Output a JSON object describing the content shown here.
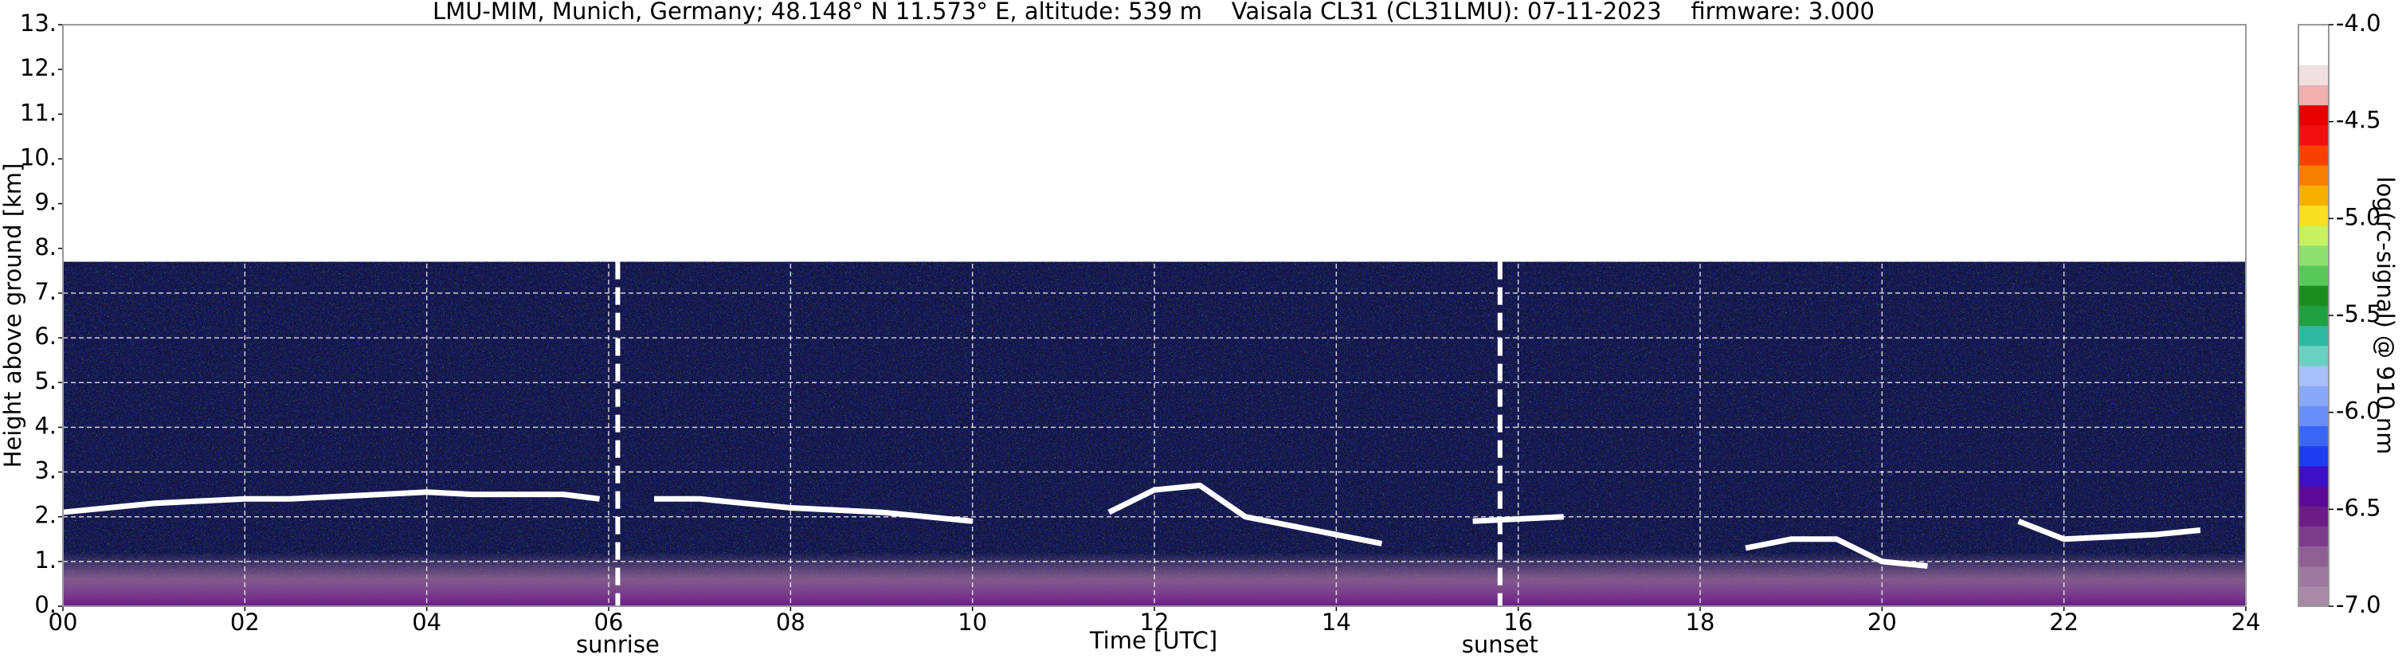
{
  "chart_data": {
    "type": "heatmap",
    "title": "LMU-MIM, Munich, Germany; 48.148° N 11.573° E, altitude: 539 m    Vaisala CL31 (CL31LMU): 07-11-2023    firmware: 3.000",
    "x_label": "Time [UTC]",
    "y_label": "Height above ground [km]",
    "colorbar_label": "log(rc-signal) @ 910 nm",
    "xlim": [
      0,
      24
    ],
    "xticks": [
      {
        "value": 0,
        "label": "00"
      },
      {
        "value": 2,
        "label": "02"
      },
      {
        "value": 4,
        "label": "04"
      },
      {
        "value": 6,
        "label": "06"
      },
      {
        "value": 8,
        "label": "08"
      },
      10,
      12,
      14,
      16,
      18,
      20,
      22,
      24
    ],
    "ylim": [
      0,
      13
    ],
    "yticks": [
      {
        "value": 0,
        "label": "0."
      },
      {
        "value": 1,
        "label": "1."
      },
      {
        "value": 2,
        "label": "2."
      },
      {
        "value": 3,
        "label": "3."
      },
      {
        "value": 4,
        "label": "4."
      },
      {
        "value": 5,
        "label": "5."
      },
      {
        "value": 6,
        "label": "6."
      },
      {
        "value": 7,
        "label": "7."
      },
      {
        "value": 8,
        "label": "8."
      },
      {
        "value": 9,
        "label": "9."
      },
      {
        "value": 10,
        "label": "10."
      },
      {
        "value": 11,
        "label": "11."
      },
      {
        "value": 12,
        "label": "12."
      },
      {
        "value": 13,
        "label": "13."
      }
    ],
    "grid": true,
    "signal_top": 7.7,
    "clim": [
      -7,
      -4
    ],
    "cticks": [
      {
        "value": -7,
        "label": "-7.0"
      },
      -6.5,
      {
        "value": -6,
        "label": "-6.0"
      },
      -5.5,
      {
        "value": -5,
        "label": "-5.0"
      },
      -4.5,
      {
        "value": -4,
        "label": "-4.0"
      }
    ],
    "colormap": [
      "#a88aa8",
      "#9c789c",
      "#8f5f93",
      "#7d3c8a",
      "#6b1c86",
      "#5a0a96",
      "#3d10c8",
      "#1f3cf0",
      "#3a66f5",
      "#6a8ef7",
      "#8aa8f8",
      "#a8c0f8",
      "#6ad0c0",
      "#30b8a0",
      "#20a040",
      "#1a8c20",
      "#58c858",
      "#90e070",
      "#c8f060",
      "#f8e020",
      "#f8b000",
      "#f88000",
      "#f84000",
      "#f01010",
      "#e80000",
      "#f0b0b0",
      "#f0e0e0",
      "#ffffff",
      "#ffffff"
    ],
    "events": [
      {
        "x": 6.1,
        "label": "sunrise"
      },
      {
        "x": 15.8,
        "label": "sunset"
      }
    ],
    "x": [
      0,
      0.5,
      1,
      1.5,
      2,
      2.5,
      3,
      3.5,
      4,
      4.5,
      5,
      5.5,
      5.9,
      6.2,
      6.5,
      7,
      7.5,
      8,
      8.5,
      9,
      9.5,
      10,
      10.5,
      11,
      11.5,
      12,
      12.5,
      13,
      13.5,
      14,
      14.5,
      15,
      15.5,
      16,
      16.5,
      17,
      17.5,
      18,
      18.5,
      19,
      19.5,
      20,
      20.5,
      21,
      21.5,
      22,
      22.5,
      23,
      23.5,
      24
    ],
    "series": [
      {
        "color": "#ffffff",
        "values": [
          2.1,
          2.2,
          2.3,
          2.35,
          2.4,
          2.4,
          2.45,
          2.5,
          2.55,
          2.5,
          2.5,
          2.5,
          2.4,
          null,
          2.4,
          2.4,
          2.3,
          2.2,
          2.15,
          2.1,
          2.0,
          1.9,
          null,
          null,
          2.1,
          2.6,
          2.7,
          2.0,
          1.8,
          1.6,
          1.4,
          null,
          1.9,
          1.95,
          2.0,
          null,
          null,
          null,
          1.3,
          1.5,
          1.5,
          1.0,
          0.9,
          null,
          1.9,
          1.5,
          1.55,
          1.6,
          1.7,
          null
        ]
      }
    ]
  }
}
